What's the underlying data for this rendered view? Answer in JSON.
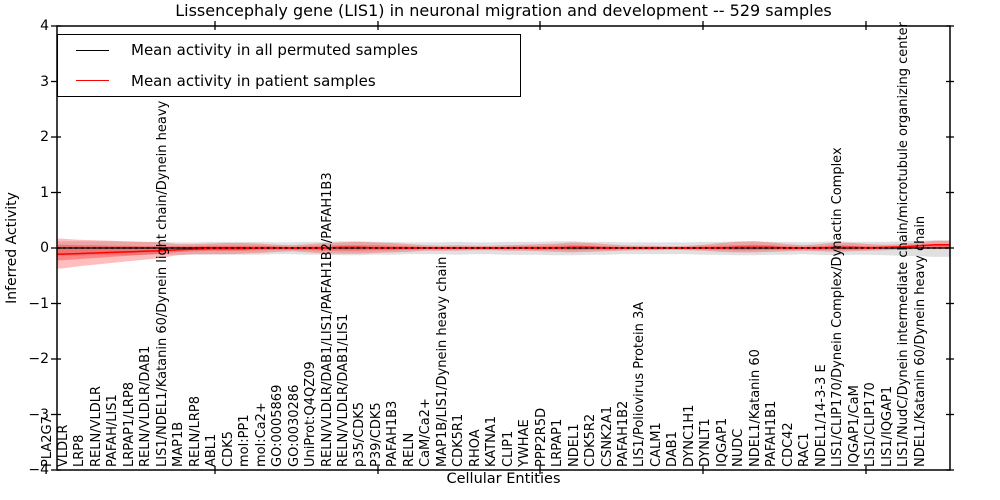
{
  "title": "Lissencephaly gene (LIS1) in neuronal migration and development -- 529 samples",
  "axes": {
    "ylabel": "Inferred Activity",
    "xlabel": "Cellular Entities",
    "ytick_labels": [
      "4",
      "3",
      "2",
      "1",
      "0",
      "−1",
      "−2",
      "−3",
      "−4"
    ],
    "ytick_values": [
      4,
      3,
      2,
      1,
      0,
      -1,
      -2,
      -3,
      -4
    ]
  },
  "legend": {
    "items": [
      {
        "label": "Mean activity in all permuted samples",
        "color": "#000000"
      },
      {
        "label": "Mean activity in patient samples",
        "color": "#ff0000"
      }
    ]
  },
  "chart_data": {
    "type": "line",
    "title": "Lissencephaly gene (LIS1) in neuronal migration and development -- 529 samples",
    "xlabel": "Cellular Entities",
    "ylabel": "Inferred Activity",
    "ylim": [
      -4,
      4
    ],
    "grid": false,
    "legend_position": "upper left",
    "categories": [
      "PLA2G7",
      "VLDLR",
      "LRP8",
      "RELN/VLDLR",
      "PAFAH/LIS1",
      "LRPAP1/LRP8",
      "RELN/VLDLR/DAB1",
      "LIS1/NDEL1/Katanin 60/Dynein light chain/Dynein heavy chain",
      "MAP1B",
      "RELN/LRP8",
      "ABL1",
      "CDK5",
      "mol:PP1",
      "mol:Ca2+",
      "GO:0005869",
      "GO:0030286",
      "UniProt:Q4QZ09",
      "RELN/VLDLR/DAB1/LIS1/PAFAH1B2/PAFAH1B3",
      "RELN/VLDLR/DAB1/LIS1",
      "p35/CDK5",
      "P39/CDK5",
      "PAFAH1B3",
      "RELN",
      "CaM/Ca2+",
      "MAP1B/LIS1/Dynein heavy chain",
      "CDK5R1",
      "RHOA",
      "KATNA1",
      "CLIP1",
      "YWHAE",
      "PPP2R5D",
      "LRPAP1",
      "NDEL1",
      "CDK5R2",
      "CSNK2A1",
      "PAFAH1B2",
      "LIS1/Poliovirus Protein 3A",
      "CALM1",
      "DAB1",
      "DYNC1H1",
      "DYNLT1",
      "IQGAP1",
      "NUDC",
      "NDEL1/Katanin 60",
      "PAFAH1B1",
      "CDC42",
      "RAC1",
      "NDEL1/14-3-3 E",
      "LIS1/CLIP170/Dynein Complex/Dynactin Complex",
      "IQGAP1/CaM",
      "LIS1/CLIP170",
      "LIS1/IQGAP1",
      "LIS1/NudC/Dynein intermediate chain/microtubule organizing center",
      "NDEL1/Katanin 60/Dynein heavy chain"
    ],
    "series": [
      {
        "name": "Mean activity in all permuted samples",
        "color": "#000000",
        "values": [
          0,
          0,
          0,
          0,
          0,
          0,
          0,
          0,
          0,
          0,
          0,
          0,
          0,
          0,
          0,
          0,
          0,
          0,
          0,
          0,
          0,
          0,
          0,
          0,
          0,
          0,
          0,
          0,
          0,
          0,
          0,
          0,
          0,
          0,
          0,
          0,
          0,
          0,
          0,
          0,
          0,
          0,
          0,
          0,
          0,
          0,
          0,
          0,
          0,
          0,
          0,
          0,
          0,
          0
        ]
      },
      {
        "name": "Mean activity in patient samples",
        "color": "#ff0000",
        "values": [
          -0.11,
          -0.1,
          -0.09,
          -0.08,
          -0.07,
          -0.06,
          -0.05,
          -0.03,
          -0.02,
          -0.01,
          -0.01,
          -0.01,
          0,
          0,
          0,
          0,
          0,
          0.01,
          0.01,
          0,
          0,
          0,
          0,
          0,
          0,
          0,
          0,
          0,
          0,
          0,
          0,
          0.01,
          0.01,
          0,
          0,
          0,
          0,
          0,
          0,
          0,
          0,
          0.01,
          0.01,
          0.01,
          0,
          0,
          0,
          0.01,
          0.01,
          0,
          0.01,
          0.02,
          0.04,
          0.06
        ]
      }
    ],
    "bands": [
      {
        "name": "permuted-samples-range",
        "color": "#999999",
        "alpha": 0.3,
        "upper": [
          0.12,
          0.12,
          0.12,
          0.12,
          0.11,
          0.11,
          0.11,
          0.1,
          0.1,
          0.11,
          0.11,
          0.11,
          0.11,
          0.1,
          0.1,
          0.11,
          0.11,
          0.12,
          0.12,
          0.11,
          0.11,
          0.1,
          0.1,
          0.1,
          0.11,
          0.1,
          0.1,
          0.11,
          0.11,
          0.11,
          0.12,
          0.12,
          0.11,
          0.11,
          0.1,
          0.1,
          0.1,
          0.1,
          0.1,
          0.11,
          0.11,
          0.12,
          0.12,
          0.11,
          0.11,
          0.1,
          0.11,
          0.12,
          0.11,
          0.11,
          0.11,
          0.12,
          0.13,
          0.14
        ],
        "lower": [
          -0.14,
          -0.14,
          -0.13,
          -0.13,
          -0.13,
          -0.12,
          -0.12,
          -0.12,
          -0.12,
          -0.12,
          -0.12,
          -0.12,
          -0.12,
          -0.11,
          -0.11,
          -0.12,
          -0.12,
          -0.13,
          -0.13,
          -0.12,
          -0.12,
          -0.11,
          -0.11,
          -0.11,
          -0.12,
          -0.11,
          -0.11,
          -0.12,
          -0.12,
          -0.12,
          -0.13,
          -0.13,
          -0.12,
          -0.12,
          -0.11,
          -0.11,
          -0.11,
          -0.11,
          -0.11,
          -0.12,
          -0.12,
          -0.13,
          -0.13,
          -0.12,
          -0.12,
          -0.11,
          -0.12,
          -0.13,
          -0.12,
          -0.12,
          -0.13,
          -0.14,
          -0.15,
          -0.16
        ]
      },
      {
        "name": "patient-samples-range-outer",
        "color": "#ff0000",
        "alpha": 0.26,
        "upper": [
          0.17,
          0.15,
          0.14,
          0.13,
          0.12,
          0.11,
          0.1,
          0.07,
          0.07,
          0.08,
          0.09,
          0.09,
          0.08,
          0.06,
          0.05,
          0.07,
          0.09,
          0.1,
          0.11,
          0.1,
          0.09,
          0.07,
          0.05,
          0.04,
          0.05,
          0.04,
          0.04,
          0.05,
          0.06,
          0.07,
          0.08,
          0.1,
          0.09,
          0.07,
          0.05,
          0.04,
          0.04,
          0.03,
          0.04,
          0.06,
          0.09,
          0.11,
          0.12,
          0.1,
          0.07,
          0.05,
          0.07,
          0.1,
          0.09,
          0.07,
          0.06,
          0.07,
          0.1,
          0.13
        ],
        "lower": [
          -0.37,
          -0.33,
          -0.3,
          -0.27,
          -0.24,
          -0.21,
          -0.18,
          -0.13,
          -0.11,
          -0.11,
          -0.11,
          -0.1,
          -0.09,
          -0.07,
          -0.06,
          -0.08,
          -0.1,
          -0.1,
          -0.1,
          -0.09,
          -0.08,
          -0.07,
          -0.05,
          -0.05,
          -0.05,
          -0.04,
          -0.04,
          -0.05,
          -0.05,
          -0.06,
          -0.07,
          -0.08,
          -0.07,
          -0.06,
          -0.05,
          -0.04,
          -0.04,
          -0.03,
          -0.04,
          -0.05,
          -0.07,
          -0.08,
          -0.08,
          -0.07,
          -0.06,
          -0.05,
          -0.06,
          -0.07,
          -0.06,
          -0.05,
          -0.04,
          -0.03,
          -0.02,
          -0.02
        ]
      },
      {
        "name": "patient-samples-range-inner",
        "color": "#ff0000",
        "alpha": 0.3,
        "upper": [
          0.06,
          0.05,
          0.05,
          0.04,
          0.04,
          0.03,
          0.03,
          0.03,
          0.03,
          0.04,
          0.04,
          0.04,
          0.04,
          0.03,
          0.02,
          0.03,
          0.04,
          0.05,
          0.05,
          0.05,
          0.04,
          0.03,
          0.02,
          0.02,
          0.02,
          0.02,
          0.02,
          0.02,
          0.03,
          0.03,
          0.04,
          0.05,
          0.04,
          0.03,
          0.02,
          0.02,
          0.02,
          0.01,
          0.02,
          0.03,
          0.04,
          0.05,
          0.06,
          0.05,
          0.03,
          0.02,
          0.03,
          0.05,
          0.04,
          0.03,
          0.03,
          0.03,
          0.05,
          0.07
        ],
        "lower": [
          -0.22,
          -0.2,
          -0.18,
          -0.16,
          -0.14,
          -0.12,
          -0.1,
          -0.07,
          -0.06,
          -0.05,
          -0.05,
          -0.05,
          -0.04,
          -0.03,
          -0.03,
          -0.04,
          -0.05,
          -0.05,
          -0.05,
          -0.04,
          -0.04,
          -0.03,
          -0.02,
          -0.02,
          -0.02,
          -0.02,
          -0.02,
          -0.02,
          -0.02,
          -0.03,
          -0.03,
          -0.04,
          -0.03,
          -0.03,
          -0.02,
          -0.02,
          -0.02,
          -0.01,
          -0.02,
          -0.02,
          -0.03,
          -0.04,
          -0.04,
          -0.03,
          -0.03,
          -0.02,
          -0.03,
          -0.03,
          -0.03,
          -0.02,
          -0.02,
          -0.01,
          -0.01,
          -0.01
        ]
      }
    ]
  }
}
